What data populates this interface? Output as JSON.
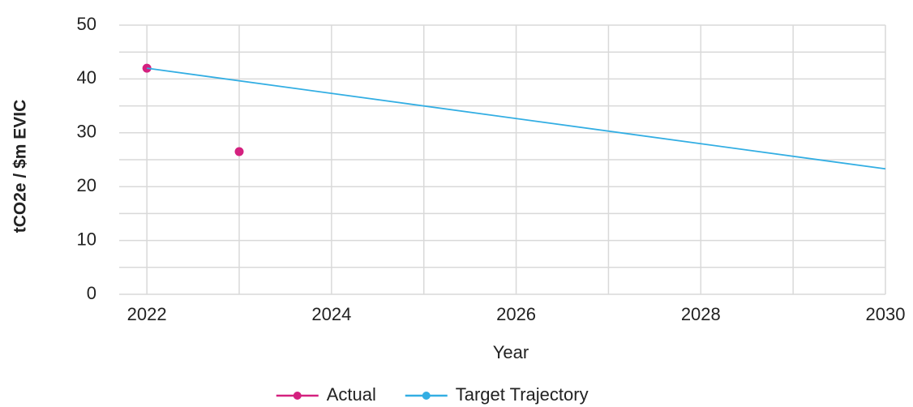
{
  "chart_data": {
    "type": "line",
    "x_label": "Year",
    "y_label": "tCO2e / $m EVIC",
    "series": [
      {
        "name": "Actual",
        "color": "#d4217f",
        "x": [
          2022,
          2023
        ],
        "values": [
          42,
          26.5
        ],
        "line": false,
        "markers": true
      },
      {
        "name": "Target Trajectory",
        "color": "#33aee3",
        "x": [
          2022,
          2030
        ],
        "values": [
          42,
          23.3
        ],
        "line": true,
        "markers": false
      }
    ],
    "xlim": [
      2021.7,
      2030
    ],
    "xticks": [
      2022,
      2024,
      2026,
      2028,
      2030
    ],
    "minor_xticks": [
      2023,
      2025,
      2027,
      2029
    ],
    "ylim": [
      0,
      50
    ],
    "yticks": [
      0,
      10,
      20,
      30,
      40,
      50
    ],
    "minor_yticks": [
      5,
      15,
      25,
      35,
      45
    ],
    "grid": true,
    "legend": "bottom"
  }
}
